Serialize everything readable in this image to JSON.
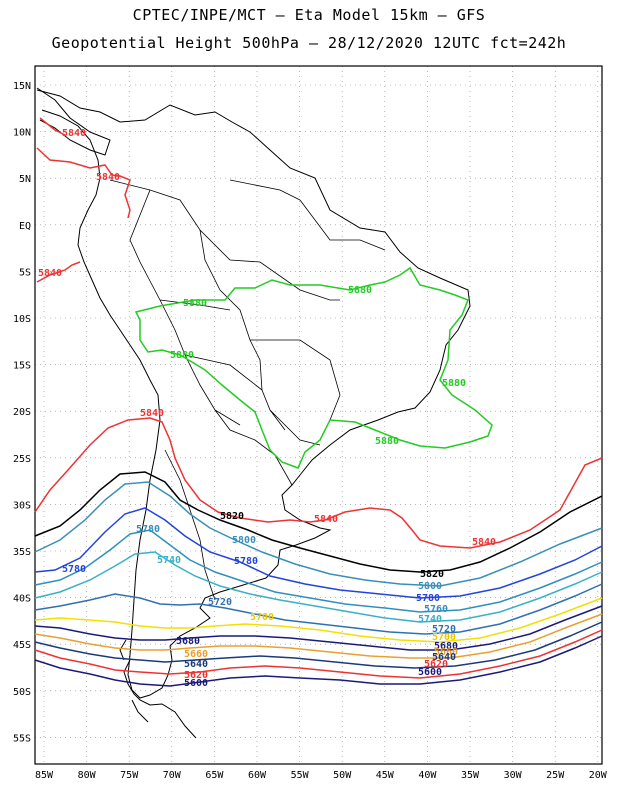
{
  "header": {
    "line1": "CPTEC/INPE/MCT –  Eta Model 15km – GFS",
    "line2": "Geopotential Height 500hPa – 28/12/2020 12UTC fct=242h"
  },
  "axes": {
    "lat_labels": [
      "15N",
      "10N",
      "5N",
      "EQ",
      "5S",
      "10S",
      "15S",
      "20S",
      "25S",
      "30S",
      "35S",
      "40S",
      "45S",
      "50S",
      "55S"
    ],
    "lon_labels": [
      "85W",
      "80W",
      "75W",
      "70W",
      "65W",
      "60W",
      "55W",
      "50W",
      "45W",
      "40W",
      "35W",
      "30W",
      "25W",
      "20W"
    ]
  },
  "colors": {
    "c5880": "#22cc22",
    "c5840": "#ee3333",
    "c5820": "#000000",
    "c5800": "#3a8fb7",
    "c5780": "#2244dd",
    "c5760": "#2f8fc0",
    "c5740": "#3ab0c8",
    "c5720": "#2f70b0",
    "c5700": "#f2e000",
    "c5680": "#1a1a7a",
    "c5660": "#e8a030",
    "c5640": "#1a3a7a",
    "c5620": "#ee3333",
    "c5600": "#1a1a7a"
  },
  "contour_labels": [
    {
      "id": "l5840a",
      "text": "5840"
    },
    {
      "id": "l5840b",
      "text": "5840"
    },
    {
      "id": "l5840c",
      "text": "5840"
    },
    {
      "id": "l5840d",
      "text": "5840"
    },
    {
      "id": "l5840e",
      "text": "5840"
    },
    {
      "id": "l5840f",
      "text": "5840"
    },
    {
      "id": "l5880a",
      "text": "5880"
    },
    {
      "id": "l5880b",
      "text": "5880"
    },
    {
      "id": "l5880c",
      "text": "5880"
    },
    {
      "id": "l5880d",
      "text": "5880"
    },
    {
      "id": "l5880e",
      "text": "5880"
    },
    {
      "id": "l5820a",
      "text": "5820"
    },
    {
      "id": "l5820b",
      "text": "5820"
    },
    {
      "id": "l5800a",
      "text": "5800"
    },
    {
      "id": "l5800b",
      "text": "5800"
    },
    {
      "id": "l5780a",
      "text": "5780"
    },
    {
      "id": "l5780b",
      "text": "5780"
    },
    {
      "id": "l5780c",
      "text": "5780"
    },
    {
      "id": "l5780d",
      "text": "5780"
    },
    {
      "id": "l5760a",
      "text": "5760"
    },
    {
      "id": "l5760b",
      "text": "5760"
    },
    {
      "id": "l5740a",
      "text": "5740"
    },
    {
      "id": "l5740b",
      "text": "5740"
    },
    {
      "id": "l5720a",
      "text": "5720"
    },
    {
      "id": "l5720b",
      "text": "5720"
    },
    {
      "id": "l5700a",
      "text": "5700"
    },
    {
      "id": "l5700b",
      "text": "5700"
    },
    {
      "id": "l5680a",
      "text": "5680"
    },
    {
      "id": "l5680b",
      "text": "5680"
    },
    {
      "id": "l5660a",
      "text": "5660"
    },
    {
      "id": "l5660b",
      "text": "5660"
    },
    {
      "id": "l5640a",
      "text": "5640"
    },
    {
      "id": "l5640b",
      "text": "5640"
    },
    {
      "id": "l5620a",
      "text": "5620"
    },
    {
      "id": "l5620b",
      "text": "5620"
    },
    {
      "id": "l5600a",
      "text": "5600"
    },
    {
      "id": "l5600b",
      "text": "5600"
    }
  ]
}
